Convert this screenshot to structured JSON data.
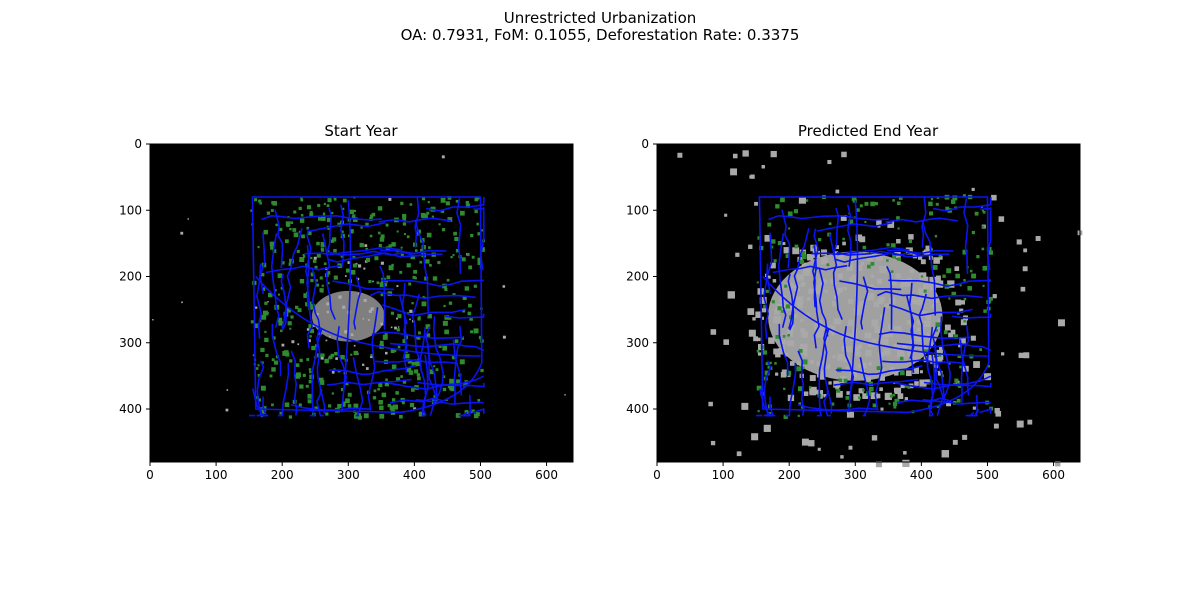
{
  "figure": {
    "suptitle_line1": "Unrestricted Urbanization",
    "suptitle_line2": "OA: 0.7931, FoM: 0.1055, Deforestation Rate: 0.3375"
  },
  "colors": {
    "background": "#000000",
    "urban": "#a9a9a9",
    "forest": "#2e8b2e",
    "roads": "#0a14f0"
  },
  "chart_data": [
    {
      "type": "heatmap",
      "title": "Start Year",
      "xlim": [
        0,
        640
      ],
      "ylim": [
        480,
        0
      ],
      "y_inverted": true,
      "xticks": [
        0,
        100,
        200,
        300,
        400,
        500,
        600
      ],
      "yticks": [
        0,
        100,
        200,
        300,
        400
      ],
      "legend": "none",
      "grid": false,
      "classes": [
        "background",
        "urban",
        "forest",
        "roads"
      ],
      "study_area_box": {
        "x": [
          150,
          505
        ],
        "y": [
          75,
          410
        ]
      },
      "urban_core": {
        "center": [
          300,
          260
        ],
        "radius": [
          100,
          85
        ]
      },
      "urban_density": 0.35,
      "forest_density": 0.35
    },
    {
      "type": "heatmap",
      "title": "Predicted End Year",
      "xlim": [
        0,
        640
      ],
      "ylim": [
        480,
        0
      ],
      "y_inverted": true,
      "xticks": [
        0,
        100,
        200,
        300,
        400,
        500,
        600
      ],
      "yticks": [
        0,
        100,
        200,
        300,
        400
      ],
      "legend": "none",
      "grid": false,
      "classes": [
        "background",
        "urban",
        "forest",
        "roads"
      ],
      "study_area_box": {
        "x": [
          150,
          505
        ],
        "y": [
          75,
          410
        ]
      },
      "urban_core": {
        "center": [
          300,
          260
        ],
        "radius": [
          165,
          130
        ]
      },
      "urban_density": 0.75,
      "forest_density": 0.18
    }
  ]
}
